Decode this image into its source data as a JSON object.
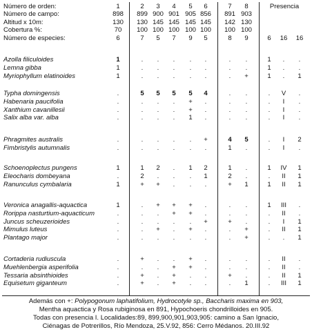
{
  "header": {
    "labels": [
      "Número de orden:",
      "Número de campo:",
      "Altitud x 10m:",
      "Cobertura %:",
      "Número de especies:"
    ],
    "presencia": "Presencia",
    "columns": [
      {
        "orden": "1",
        "campo": "898",
        "altitud": "130",
        "cobertura": "70",
        "especies": "6"
      },
      {
        "orden": "2",
        "campo": "899",
        "altitud": "130",
        "cobertura": "100",
        "especies": "7"
      },
      {
        "orden": "3",
        "campo": "900",
        "altitud": "145",
        "cobertura": "100",
        "especies": "5"
      },
      {
        "orden": "4",
        "campo": "901",
        "altitud": "145",
        "cobertura": "100",
        "especies": "7"
      },
      {
        "orden": "5",
        "campo": "905",
        "altitud": "145",
        "cobertura": "100",
        "especies": "9"
      },
      {
        "orden": "6",
        "campo": "856",
        "altitud": "145",
        "cobertura": "100",
        "especies": "5"
      },
      {
        "orden": "7",
        "campo": "891",
        "altitud": "142",
        "cobertura": "100",
        "especies": "8"
      },
      {
        "orden": "8",
        "campo": "903",
        "altitud": "130",
        "cobertura": "100",
        "especies": "9"
      }
    ],
    "presence_counts": [
      "6",
      "16",
      "16"
    ]
  },
  "groups": [
    {
      "rows": [
        {
          "species": "Azolla filiculoides",
          "cells": [
            "1",
            ".",
            ".",
            ".",
            ".",
            ".",
            ".",
            "."
          ],
          "presence": [
            "1",
            ".",
            "."
          ]
        },
        {
          "species": "Lemna gibba",
          "cells": [
            "1",
            ".",
            ".",
            ".",
            ".",
            ".",
            ".",
            "."
          ],
          "presence": [
            "1",
            ".",
            "."
          ]
        },
        {
          "species": "Myriophyllum elatinoides",
          "cells": [
            "1",
            ".",
            ".",
            ".",
            ".",
            ".",
            ".",
            "+"
          ],
          "presence": [
            "1",
            ".",
            "1"
          ]
        }
      ]
    },
    {
      "rows": [
        {
          "species": "Typha domingensis",
          "cells": [
            ".",
            "5",
            "5",
            "5",
            "5",
            "4",
            ".",
            "."
          ],
          "presence": [
            ".",
            "V",
            "."
          ]
        },
        {
          "species": "Habenaria paucifolia",
          "cells": [
            ".",
            ".",
            ".",
            ".",
            "+",
            ".",
            ".",
            "."
          ],
          "presence": [
            ".",
            "I",
            "."
          ]
        },
        {
          "species": "Xanthium cavanillesii",
          "cells": [
            ".",
            ".",
            ".",
            ".",
            "+",
            ".",
            ".",
            "."
          ],
          "presence": [
            ".",
            "I",
            "."
          ]
        },
        {
          "species": "Salix alba var. alba",
          "cells": [
            ".",
            ".",
            ".",
            ".",
            "1",
            ".",
            ".",
            "."
          ],
          "presence": [
            ".",
            "I",
            "."
          ]
        }
      ]
    },
    {
      "rows": [
        {
          "species": "Phragmites australis",
          "cells": [
            ".",
            ".",
            ".",
            ".",
            ".",
            "+",
            "4",
            "5"
          ],
          "presence": [
            ".",
            "I",
            "2"
          ]
        },
        {
          "species": "Fimbristylis autumnalis",
          "cells": [
            ".",
            ".",
            ".",
            ".",
            ".",
            ".",
            "1",
            "."
          ],
          "presence": [
            ".",
            "I",
            "."
          ]
        }
      ]
    },
    {
      "rows": [
        {
          "species": "Schoenoplectus pungens",
          "cells": [
            "1",
            "1",
            "2",
            ".",
            "1",
            "2",
            "1",
            "."
          ],
          "presence": [
            "1",
            "IV",
            "1"
          ]
        },
        {
          "species": "Eleocharis dombeyana",
          "cells": [
            ".",
            "2",
            ".",
            ".",
            ".",
            "1",
            "2",
            "."
          ],
          "presence": [
            ".",
            "II",
            "1"
          ]
        },
        {
          "species": "Ranunculus cymbalaria",
          "cells": [
            "1",
            "+",
            "+",
            ".",
            ".",
            ".",
            "+",
            "1"
          ],
          "presence": [
            "1",
            "II",
            "1"
          ]
        }
      ]
    },
    {
      "rows": [
        {
          "species": "Veronica anagallis-aquactica",
          "cells": [
            "1",
            ".",
            "+",
            "+",
            "+",
            ".",
            ".",
            "."
          ],
          "presence": [
            "1",
            "III",
            "."
          ]
        },
        {
          "species": "Rorippa nasturtium-aquacticum",
          "cells": [
            ".",
            ".",
            ".",
            "+",
            "+",
            ".",
            ".",
            "."
          ],
          "presence": [
            ".",
            "II",
            "."
          ]
        },
        {
          "species": "Juncus scheuzerioides",
          "cells": [
            ".",
            ".",
            ".",
            ".",
            ".",
            "+",
            "+",
            "."
          ],
          "presence": [
            ".",
            "I",
            "1"
          ]
        },
        {
          "species": "Mimulus luteus",
          "cells": [
            ".",
            ".",
            "+",
            ".",
            "+",
            ".",
            ".",
            "+"
          ],
          "presence": [
            ".",
            "II",
            "1"
          ]
        },
        {
          "species": "Plantago major",
          "cells": [
            ".",
            ".",
            ".",
            ".",
            ".",
            ".",
            ".",
            "+"
          ],
          "presence": [
            ".",
            ".",
            "1"
          ]
        }
      ]
    },
    {
      "rows": [
        {
          "species": "Cortaderia rudiuscula",
          "cells": [
            ".",
            "+",
            ".",
            ".",
            "+",
            ".",
            ".",
            "."
          ],
          "presence": [
            ".",
            "II",
            "."
          ]
        },
        {
          "species": "Muehlenbergia asperifolia",
          "cells": [
            ".",
            ".",
            ".",
            "+",
            "+",
            ".",
            ".",
            "."
          ],
          "presence": [
            ".",
            "II",
            "."
          ]
        },
        {
          "species": "Tessaria absinthioides",
          "cells": [
            ".",
            "+",
            ".",
            "+",
            ".",
            ".",
            "+",
            "."
          ],
          "presence": [
            ".",
            "II",
            "1"
          ]
        },
        {
          "species": "Equisetum giganteum",
          "cells": [
            ".",
            "+",
            ".",
            "+",
            ".",
            ".",
            ".",
            "1"
          ],
          "presence": [
            ".",
            "III",
            "1"
          ]
        }
      ]
    }
  ],
  "footer": {
    "line1_prefix": "Además con +: ",
    "line1_rest": "Polypogonum laphatifolium, Hydrocotyle sp., Baccharis maxima en 903,",
    "line2": "Mentha aquactica y Rosa rubiginosa en 891, Hypochoeris chondrilloides en 905.",
    "line3": "Todas con presencia I. Localidades:89, 899,900,901,903,905: camino a San Ignacio,",
    "line4": "Ciénagas de Potrerillos, Río Mendoza, 25.V.92, 856: Cerro Médanos. 20.III.92"
  }
}
